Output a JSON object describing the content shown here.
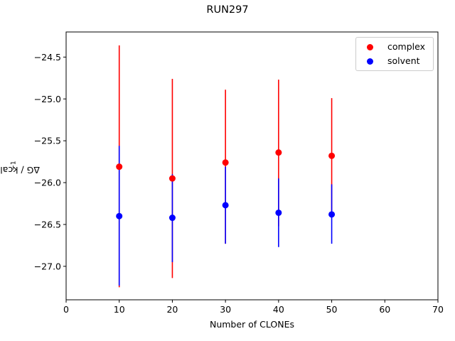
{
  "chart_data": {
    "type": "scatter",
    "title": "RUN297",
    "xlabel": "Number of CLONEs",
    "ylabel": "ΔG / kcal mol",
    "ylabel_superscript": "−1",
    "xlim": [
      0,
      70
    ],
    "ylim": [
      -27.4,
      -24.2
    ],
    "xticks": [
      0,
      10,
      20,
      30,
      40,
      50,
      60,
      70
    ],
    "yticks": [
      -24.5,
      -25.0,
      -25.5,
      -26.0,
      -26.5,
      -27.0
    ],
    "ytick_labels": [
      "−24.5",
      "−25.0",
      "−25.5",
      "−26.0",
      "−26.5",
      "−27.0"
    ],
    "grid": false,
    "legend_position": "top-right",
    "series": [
      {
        "name": "complex",
        "color": "#ff0000",
        "x": [
          10,
          20,
          30,
          40,
          50
        ],
        "y": [
          -25.81,
          -25.95,
          -25.76,
          -25.64,
          -25.68
        ],
        "err_low": [
          -27.25,
          -27.14,
          -26.73,
          -26.52,
          -26.36
        ],
        "err_high": [
          -24.36,
          -24.76,
          -24.89,
          -24.77,
          -24.99
        ]
      },
      {
        "name": "solvent",
        "color": "#0000ff",
        "x": [
          10,
          20,
          30,
          40,
          50
        ],
        "y": [
          -26.4,
          -26.42,
          -26.27,
          -26.36,
          -26.38
        ],
        "err_low": [
          -27.23,
          -26.95,
          -26.73,
          -26.77,
          -26.73
        ],
        "err_high": [
          -25.56,
          -25.9,
          -25.81,
          -25.95,
          -26.02
        ]
      }
    ]
  }
}
